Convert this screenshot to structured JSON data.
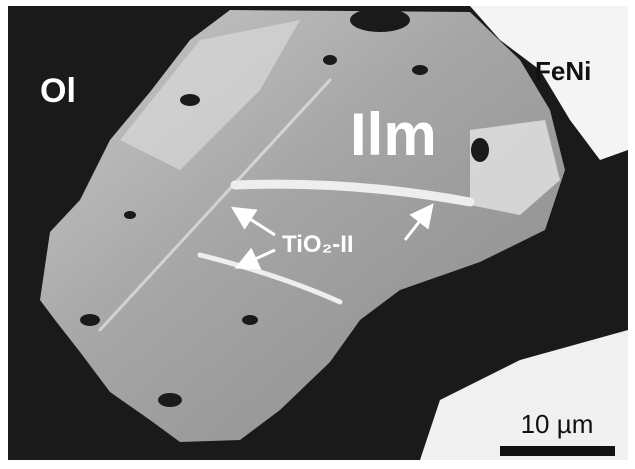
{
  "labels": {
    "olivine": "Ol",
    "iron_nickel": "FeNi",
    "ilmenite": "Ilm",
    "rutile_phase": "TiO₂-II"
  },
  "scale_bar": {
    "label": "10 µm"
  }
}
